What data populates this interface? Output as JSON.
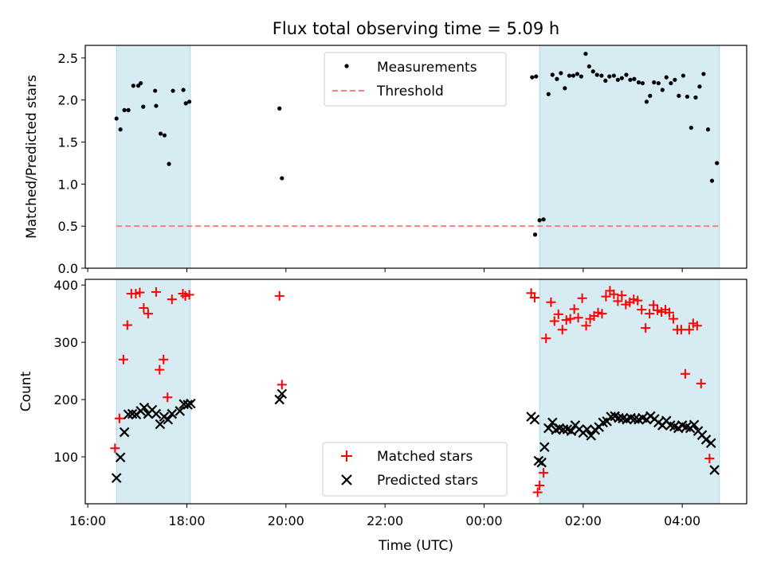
{
  "title": "Flux total observing time = 5.09 h",
  "colors": {
    "band": "#add8e6",
    "measurement": "#000000",
    "threshold": "#ff7f7f",
    "matched": "#ff0000",
    "predicted": "#000000"
  },
  "chart_data": [
    {
      "type": "scatter",
      "panel": "top",
      "ylabel": "Matched/Predicted stars",
      "xlim": [
        15.95,
        29.3
      ],
      "ylim": [
        0,
        2.65
      ],
      "yticks": [
        0.0,
        0.5,
        1.0,
        1.5,
        2.0,
        2.5
      ],
      "ytick_labels": [
        "0.0",
        "0.5",
        "1.0",
        "1.5",
        "2.0",
        "2.5"
      ],
      "xticks": [
        16,
        18,
        20,
        22,
        24,
        26,
        28
      ],
      "shaded_intervals": [
        [
          16.58,
          18.07
        ],
        [
          25.12,
          28.75
        ]
      ],
      "legend": {
        "position": "top-center",
        "entries": [
          "Measurements",
          "Threshold"
        ]
      },
      "threshold": {
        "name": "Threshold",
        "value": 0.5,
        "x_range": [
          16.58,
          28.75
        ],
        "style": "dashed"
      },
      "series": [
        {
          "name": "Measurements",
          "marker": "dot",
          "points": [
            [
              16.58,
              1.78
            ],
            [
              16.66,
              1.65
            ],
            [
              16.74,
              1.88
            ],
            [
              16.82,
              1.88
            ],
            [
              16.92,
              2.17
            ],
            [
              17.02,
              2.17
            ],
            [
              17.07,
              2.2
            ],
            [
              17.12,
              1.92
            ],
            [
              17.36,
              2.11
            ],
            [
              17.38,
              1.93
            ],
            [
              17.47,
              1.6
            ],
            [
              17.55,
              1.58
            ],
            [
              17.64,
              1.24
            ],
            [
              17.72,
              2.11
            ],
            [
              17.93,
              2.12
            ],
            [
              17.98,
              1.96
            ],
            [
              18.05,
              1.98
            ],
            [
              19.87,
              1.9
            ],
            [
              19.92,
              1.07
            ],
            [
              24.97,
              2.27
            ],
            [
              25.05,
              2.28
            ],
            [
              25.03,
              0.4
            ],
            [
              25.12,
              0.57
            ],
            [
              25.2,
              0.58
            ],
            [
              25.3,
              2.07
            ],
            [
              25.38,
              2.3
            ],
            [
              25.47,
              2.25
            ],
            [
              25.55,
              2.32
            ],
            [
              25.63,
              2.14
            ],
            [
              25.72,
              2.29
            ],
            [
              25.8,
              2.29
            ],
            [
              25.88,
              2.31
            ],
            [
              25.96,
              2.28
            ],
            [
              26.05,
              2.55
            ],
            [
              26.12,
              2.4
            ],
            [
              26.2,
              2.34
            ],
            [
              26.28,
              2.3
            ],
            [
              26.37,
              2.29
            ],
            [
              26.45,
              2.23
            ],
            [
              26.53,
              2.28
            ],
            [
              26.62,
              2.29
            ],
            [
              26.7,
              2.24
            ],
            [
              26.78,
              2.26
            ],
            [
              26.87,
              2.3
            ],
            [
              26.95,
              2.24
            ],
            [
              27.03,
              2.25
            ],
            [
              27.12,
              2.21
            ],
            [
              27.2,
              2.2
            ],
            [
              27.28,
              1.98
            ],
            [
              27.35,
              2.05
            ],
            [
              27.43,
              2.21
            ],
            [
              27.52,
              2.2
            ],
            [
              27.6,
              2.12
            ],
            [
              27.68,
              2.27
            ],
            [
              27.77,
              2.2
            ],
            [
              27.85,
              2.24
            ],
            [
              27.93,
              2.05
            ],
            [
              28.02,
              2.29
            ],
            [
              28.1,
              2.04
            ],
            [
              28.18,
              1.67
            ],
            [
              28.27,
              2.03
            ],
            [
              28.35,
              2.16
            ],
            [
              28.43,
              2.31
            ],
            [
              28.52,
              1.65
            ],
            [
              28.6,
              1.04
            ],
            [
              28.7,
              1.25
            ]
          ]
        }
      ]
    },
    {
      "type": "scatter",
      "panel": "bottom",
      "xlabel": "Time (UTC)",
      "ylabel": "Count",
      "xlim": [
        15.95,
        29.3
      ],
      "ylim": [
        18,
        410
      ],
      "yticks": [
        100,
        200,
        300,
        400
      ],
      "ytick_labels": [
        "100",
        "200",
        "300",
        "400"
      ],
      "xticks": [
        16,
        18,
        20,
        22,
        24,
        26,
        28
      ],
      "xtick_labels": [
        "16:00",
        "18:00",
        "20:00",
        "22:00",
        "00:00",
        "02:00",
        "04:00"
      ],
      "shaded_intervals": [
        [
          16.58,
          18.07
        ],
        [
          25.12,
          28.75
        ]
      ],
      "legend": {
        "position": "bottom-center",
        "entries": [
          "Matched stars",
          "Predicted stars"
        ]
      },
      "series": [
        {
          "name": "Matched stars",
          "marker": "plus",
          "points": [
            [
              16.55,
              115
            ],
            [
              16.64,
              167
            ],
            [
              16.72,
              270
            ],
            [
              16.8,
              330
            ],
            [
              16.88,
              385
            ],
            [
              16.97,
              385
            ],
            [
              17.05,
              387
            ],
            [
              17.13,
              360
            ],
            [
              17.22,
              350
            ],
            [
              17.38,
              388
            ],
            [
              17.45,
              252
            ],
            [
              17.53,
              270
            ],
            [
              17.61,
              204
            ],
            [
              17.7,
              375
            ],
            [
              17.92,
              385
            ],
            [
              17.97,
              381
            ],
            [
              18.05,
              383
            ],
            [
              19.87,
              381
            ],
            [
              19.92,
              226
            ],
            [
              24.95,
              386
            ],
            [
              25.02,
              378
            ],
            [
              25.08,
              38
            ],
            [
              25.12,
              50
            ],
            [
              25.2,
              72
            ],
            [
              25.25,
              307
            ],
            [
              25.35,
              370
            ],
            [
              25.42,
              337
            ],
            [
              25.5,
              349
            ],
            [
              25.58,
              322
            ],
            [
              25.66,
              339
            ],
            [
              25.74,
              341
            ],
            [
              25.82,
              358
            ],
            [
              25.9,
              343
            ],
            [
              25.98,
              377
            ],
            [
              26.06,
              329
            ],
            [
              26.14,
              341
            ],
            [
              26.22,
              346
            ],
            [
              26.3,
              352
            ],
            [
              26.38,
              350
            ],
            [
              26.46,
              380
            ],
            [
              26.54,
              390
            ],
            [
              26.62,
              384
            ],
            [
              26.7,
              372
            ],
            [
              26.78,
              382
            ],
            [
              26.86,
              366
            ],
            [
              26.94,
              370
            ],
            [
              27.02,
              375
            ],
            [
              27.1,
              373
            ],
            [
              27.18,
              357
            ],
            [
              27.26,
              325
            ],
            [
              27.34,
              350
            ],
            [
              27.42,
              365
            ],
            [
              27.5,
              356
            ],
            [
              27.58,
              353
            ],
            [
              27.66,
              357
            ],
            [
              27.74,
              352
            ],
            [
              27.82,
              341
            ],
            [
              27.9,
              322
            ],
            [
              27.98,
              322
            ],
            [
              28.06,
              245
            ],
            [
              28.14,
              322
            ],
            [
              28.22,
              333
            ],
            [
              28.3,
              329
            ],
            [
              28.38,
              228
            ],
            [
              28.55,
              97
            ]
          ]
        },
        {
          "name": "Predicted stars",
          "marker": "x",
          "points": [
            [
              16.58,
              63
            ],
            [
              16.66,
              99
            ],
            [
              16.74,
              143
            ],
            [
              16.82,
              174
            ],
            [
              16.9,
              175
            ],
            [
              16.98,
              174
            ],
            [
              17.07,
              180
            ],
            [
              17.14,
              186
            ],
            [
              17.22,
              175
            ],
            [
              17.3,
              182
            ],
            [
              17.38,
              175
            ],
            [
              17.46,
              157
            ],
            [
              17.54,
              170
            ],
            [
              17.62,
              165
            ],
            [
              17.7,
              175
            ],
            [
              17.86,
              180
            ],
            [
              17.94,
              192
            ],
            [
              18.02,
              191
            ],
            [
              18.08,
              193
            ],
            [
              19.87,
              200
            ],
            [
              19.92,
              210
            ],
            [
              24.95,
              170
            ],
            [
              25.02,
              165
            ],
            [
              25.1,
              93
            ],
            [
              25.16,
              90
            ],
            [
              25.22,
              117
            ],
            [
              25.3,
              150
            ],
            [
              25.38,
              160
            ],
            [
              25.45,
              147
            ],
            [
              25.52,
              150
            ],
            [
              25.6,
              148
            ],
            [
              25.68,
              148
            ],
            [
              25.76,
              145
            ],
            [
              25.84,
              155
            ],
            [
              25.92,
              148
            ],
            [
              26.0,
              142
            ],
            [
              26.08,
              148
            ],
            [
              26.16,
              137
            ],
            [
              26.24,
              147
            ],
            [
              26.32,
              152
            ],
            [
              26.4,
              160
            ],
            [
              26.48,
              162
            ],
            [
              26.56,
              170
            ],
            [
              26.64,
              171
            ],
            [
              26.72,
              168
            ],
            [
              26.8,
              167
            ],
            [
              26.88,
              165
            ],
            [
              26.96,
              168
            ],
            [
              27.04,
              166
            ],
            [
              27.12,
              165
            ],
            [
              27.2,
              168
            ],
            [
              27.28,
              165
            ],
            [
              27.36,
              171
            ],
            [
              27.44,
              166
            ],
            [
              27.52,
              160
            ],
            [
              27.6,
              155
            ],
            [
              27.68,
              163
            ],
            [
              27.76,
              155
            ],
            [
              27.84,
              153
            ],
            [
              27.92,
              150
            ],
            [
              28.0,
              155
            ],
            [
              28.08,
              152
            ],
            [
              28.16,
              150
            ],
            [
              28.24,
              156
            ],
            [
              28.32,
              145
            ],
            [
              28.4,
              138
            ],
            [
              28.48,
              130
            ],
            [
              28.58,
              124
            ],
            [
              28.65,
              77
            ]
          ]
        }
      ]
    }
  ]
}
